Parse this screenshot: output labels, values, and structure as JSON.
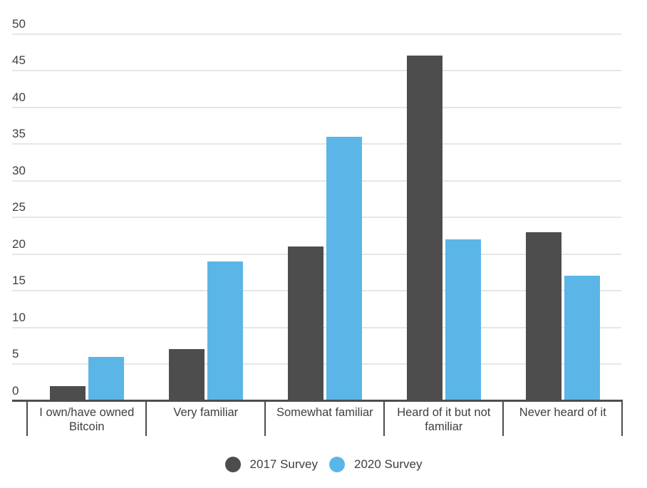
{
  "chart_data": {
    "type": "bar",
    "title": "",
    "xlabel": "",
    "ylabel": "",
    "categories": [
      "I own/have owned Bitcoin",
      "Very familiar",
      "Somewhat familiar",
      "Heard of it but not familiar",
      "Never heard of it"
    ],
    "series": [
      {
        "name": "2017 Survey",
        "color": "#4d4d4d",
        "values": [
          2,
          7,
          21,
          47,
          23
        ]
      },
      {
        "name": "2020 Survey",
        "color": "#5bb6e7",
        "values": [
          6,
          19,
          36,
          22,
          17
        ]
      }
    ],
    "ylim": [
      0,
      50
    ],
    "ytick_step": 5,
    "ytick_labels": [
      "0",
      "5",
      "10",
      "15",
      "20",
      "25",
      "30",
      "35",
      "40",
      "45",
      "50"
    ],
    "grid": true,
    "legend_position": "bottom"
  },
  "colors": {
    "background": "#ffffff",
    "gridline": "#e6e6e6",
    "axis_line": "#4d4d4d",
    "tick_line": "#4d4d4d",
    "text": "#3f3f3f"
  }
}
